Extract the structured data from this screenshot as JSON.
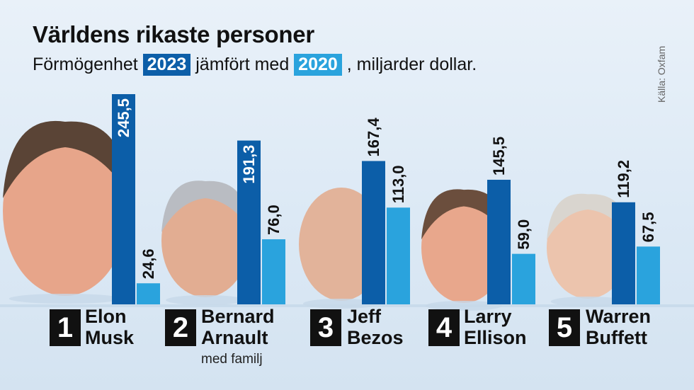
{
  "title": "Världens rikaste personer",
  "subtitle": {
    "prefix": "Förmögenhet",
    "year_a": "2023",
    "middle": "jämfört med",
    "year_b": "2020",
    "suffix": ", miljarder dollar."
  },
  "source": "Källa: Oxfam",
  "colors": {
    "y2023": "#0c5ea8",
    "y2020": "#2aa3dd"
  },
  "people": [
    {
      "rank": "1",
      "name_line1": "Elon",
      "name_line2": "Musk",
      "note": ""
    },
    {
      "rank": "2",
      "name_line1": "Bernard",
      "name_line2": "Arnault",
      "note": "med familj"
    },
    {
      "rank": "3",
      "name_line1": "Jeff",
      "name_line2": "Bezos",
      "note": ""
    },
    {
      "rank": "4",
      "name_line1": "Larry",
      "name_line2": "Ellison",
      "note": ""
    },
    {
      "rank": "5",
      "name_line1": "Warren",
      "name_line2": "Buffett",
      "note": ""
    }
  ],
  "chart_data": {
    "type": "bar",
    "title": "Världens rikaste personer",
    "categories": [
      "Elon Musk",
      "Bernard Arnault",
      "Jeff Bezos",
      "Larry Ellison",
      "Warren Buffett"
    ],
    "series": [
      {
        "name": "2023",
        "values": [
          245.5,
          191.3,
          167.4,
          145.5,
          119.2
        ],
        "labels": [
          "245,5",
          "191,3",
          "167,4",
          "145,5",
          "119,2"
        ]
      },
      {
        "name": "2020",
        "values": [
          24.6,
          76.0,
          113.0,
          59.0,
          67.5
        ],
        "labels": [
          "24,6",
          "76,0",
          "113,0",
          "59,0",
          "67,5"
        ]
      }
    ],
    "ylim": [
      0,
      250
    ],
    "grid": false,
    "legend": "inline in subtitle"
  }
}
